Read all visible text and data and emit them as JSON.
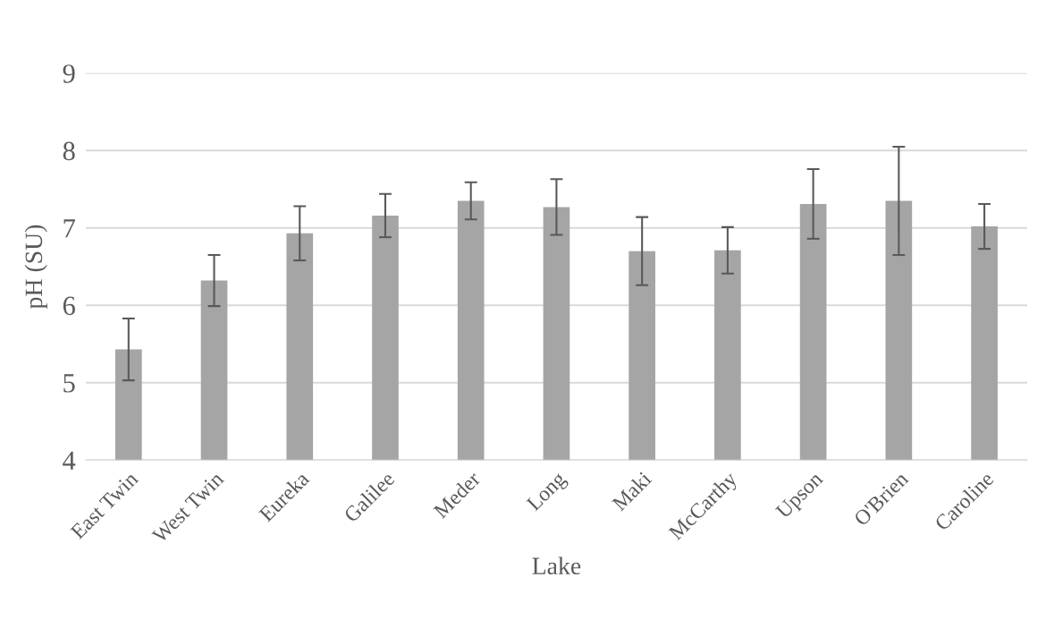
{
  "chart_data": {
    "type": "bar",
    "xlabel": "Lake",
    "ylabel": "pH (SU)",
    "categories": [
      "East Twin",
      "West Twin",
      "Eureka",
      "Galilee",
      "Meder",
      "Long",
      "Maki",
      "McCarthy",
      "Upson",
      "O'Brien",
      "Caroline"
    ],
    "values": [
      5.43,
      6.32,
      6.93,
      7.16,
      7.35,
      7.27,
      6.7,
      6.71,
      7.31,
      7.35,
      7.02
    ],
    "errors": [
      0.4,
      0.33,
      0.35,
      0.28,
      0.24,
      0.36,
      0.44,
      0.3,
      0.45,
      0.7,
      0.29
    ],
    "color": "#a5a5a5",
    "ylim": [
      4,
      9
    ],
    "yticks": [
      4,
      5,
      6,
      7,
      8,
      9
    ],
    "grid": "y",
    "legend": false
  }
}
